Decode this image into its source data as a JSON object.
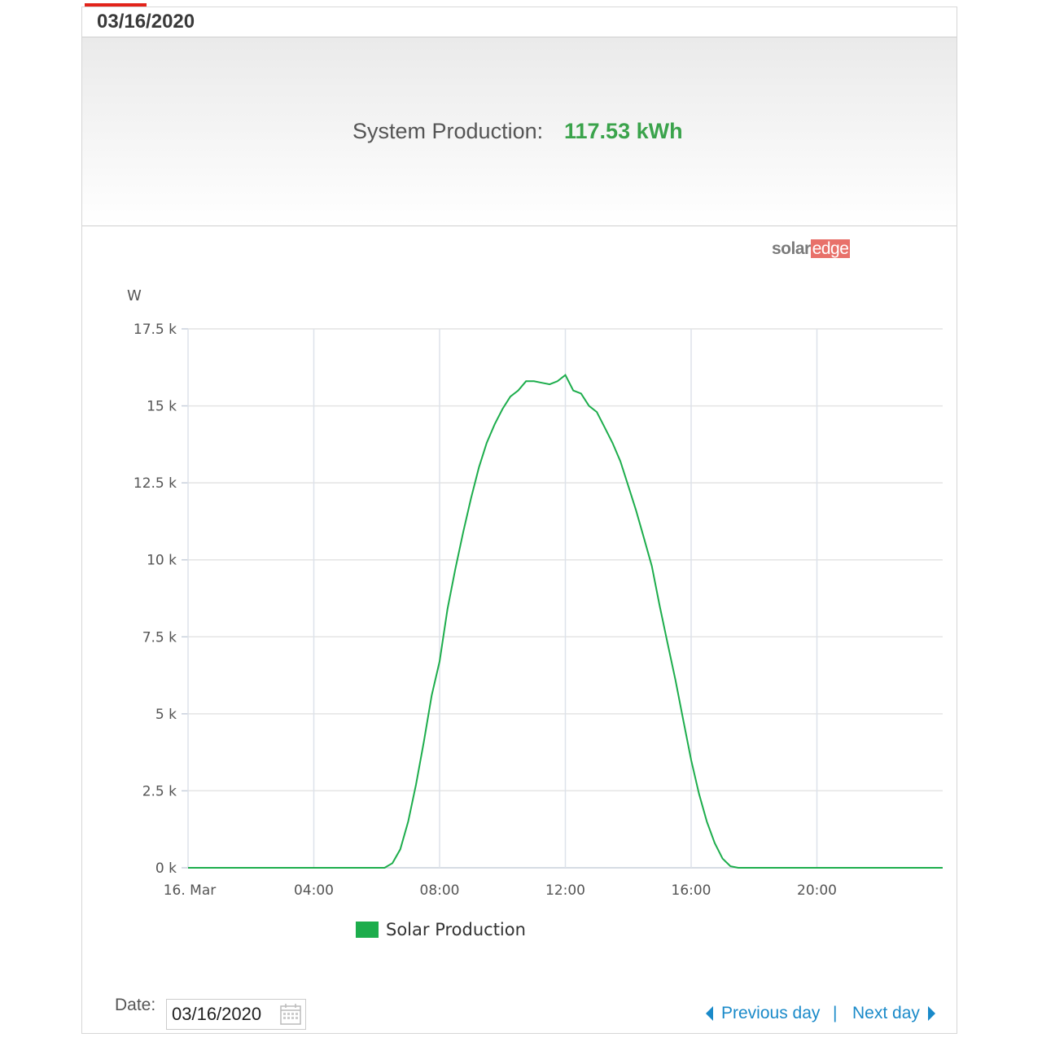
{
  "header": {
    "date": "03/16/2020"
  },
  "summary": {
    "label": "System Production:",
    "value": "117.53 kWh"
  },
  "logo": {
    "part1": "solar",
    "part2": "edge"
  },
  "footer": {
    "date_label": "Date:",
    "date_value": "03/16/2020",
    "previous_label": "Previous day",
    "separator": "|",
    "next_label": "Next day"
  },
  "colors": {
    "accent": "#e2231a",
    "value_green": "#3aa34b",
    "series_green": "#1dad4c",
    "link_blue": "#1a8ac9"
  },
  "chart_data": {
    "type": "line",
    "ylabel": "W",
    "ylim": [
      0,
      17500
    ],
    "yticks": [
      0,
      2500,
      5000,
      7500,
      10000,
      12500,
      15000,
      17500
    ],
    "ytick_labels": [
      "0 k",
      "2.5 k",
      "5 k",
      "7.5 k",
      "10 k",
      "12.5 k",
      "15 k",
      "17.5 k"
    ],
    "xlim": [
      0,
      24
    ],
    "xticks": [
      0,
      4,
      8,
      12,
      16,
      20
    ],
    "xtick_labels": [
      "16. Mar",
      "04:00",
      "08:00",
      "12:00",
      "16:00",
      "20:00"
    ],
    "grid": true,
    "legend_position": "bottom-center",
    "series": [
      {
        "name": "Solar Production",
        "color": "#1dad4c",
        "x": [
          0,
          6.25,
          6.5,
          6.75,
          7,
          7.25,
          7.5,
          7.75,
          8,
          8.25,
          8.5,
          8.75,
          9,
          9.25,
          9.5,
          9.75,
          10,
          10.25,
          10.5,
          10.75,
          11,
          11.25,
          11.5,
          11.75,
          12,
          12.25,
          12.5,
          12.75,
          13,
          13.25,
          13.5,
          13.75,
          14,
          14.25,
          14.5,
          14.75,
          15,
          15.25,
          15.5,
          15.75,
          16,
          16.25,
          16.5,
          16.75,
          17,
          17.25,
          17.5,
          17.75,
          18,
          18.25,
          18.5,
          24
        ],
        "values": [
          0,
          0,
          150,
          600,
          1500,
          2700,
          4100,
          5600,
          6700,
          8400,
          9700,
          10900,
          12000,
          13000,
          13800,
          14400,
          14900,
          15300,
          15500,
          15800,
          15800,
          15750,
          15700,
          15800,
          16000,
          15500,
          15400,
          15000,
          14800,
          14300,
          13800,
          13200,
          12400,
          11600,
          10700,
          9800,
          8500,
          7300,
          6100,
          4800,
          3500,
          2400,
          1500,
          800,
          300,
          50,
          0,
          0,
          0,
          0,
          0,
          0
        ]
      }
    ]
  }
}
